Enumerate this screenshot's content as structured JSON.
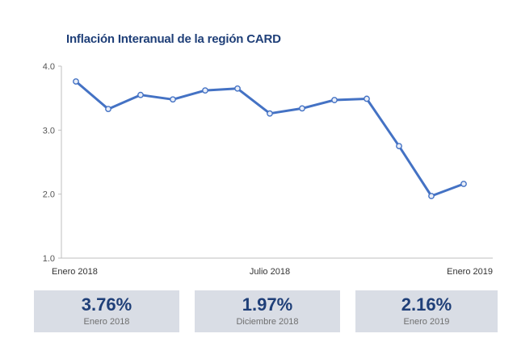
{
  "chart_data": {
    "type": "line",
    "title": "Inflación Interanual de la región CARD",
    "xlabel": "",
    "ylabel": "",
    "ylim": [
      1.0,
      4.0
    ],
    "yticks": [
      "1.0",
      "2.0",
      "3.0",
      "4.0"
    ],
    "xtick_labels": [
      {
        "index": 0,
        "label": "Enero 2018"
      },
      {
        "index": 6,
        "label": "Julio 2018"
      },
      {
        "index": 12,
        "label": "Enero 2019"
      }
    ],
    "grid": false,
    "legend": "none",
    "line_color": "#4472c4",
    "series": [
      {
        "values": [
          3.76,
          3.33,
          3.55,
          3.48,
          3.62,
          3.65,
          3.26,
          3.34,
          3.47,
          3.49,
          2.75,
          1.97,
          2.16
        ]
      }
    ]
  },
  "summary": [
    {
      "value": "3.76%",
      "label": "Enero 2018"
    },
    {
      "value": "1.97%",
      "label": "Diciembre 2018"
    },
    {
      "value": "2.16%",
      "label": "Enero 2019"
    }
  ],
  "colors": {
    "title": "#1f3f78",
    "box_background": "#d9dde5",
    "box_value": "#1f3f78",
    "box_label": "#6f6f6f"
  }
}
